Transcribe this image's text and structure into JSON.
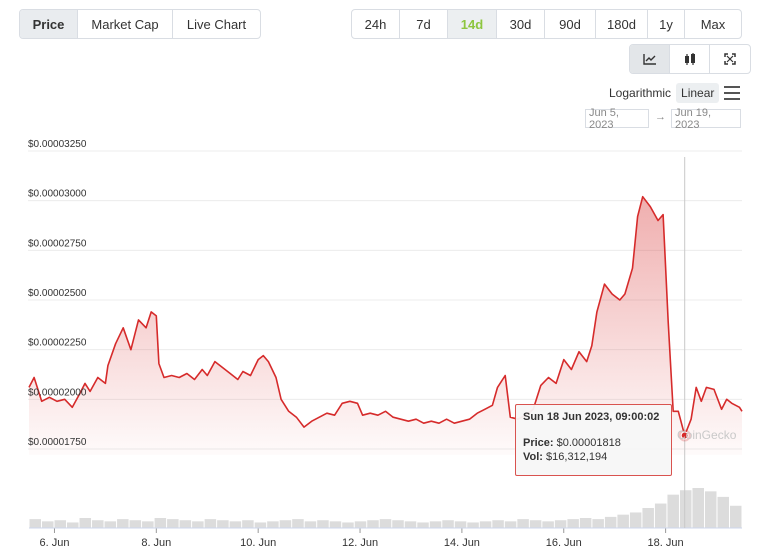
{
  "tabs": [
    {
      "label": "Price",
      "active": true
    },
    {
      "label": "Market Cap",
      "active": false
    },
    {
      "label": "Live Chart",
      "active": false
    }
  ],
  "ranges": [
    {
      "label": "24h",
      "active": false
    },
    {
      "label": "7d",
      "active": false
    },
    {
      "label": "14d",
      "active": true
    },
    {
      "label": "30d",
      "active": false
    },
    {
      "label": "90d",
      "active": false
    },
    {
      "label": "180d",
      "active": false
    },
    {
      "label": "1y",
      "active": false
    },
    {
      "label": "Max",
      "active": false
    }
  ],
  "views": [
    {
      "icon": "line-chart-icon",
      "active": true
    },
    {
      "icon": "candlestick-icon",
      "active": false
    },
    {
      "icon": "fullscreen-icon",
      "active": false
    }
  ],
  "scale": {
    "log_label": "Logarithmic",
    "linear_label": "Linear",
    "selected": "Linear"
  },
  "date_range": {
    "from": "Jun 5, 2023",
    "to": "Jun 19, 2023",
    "arrow": "→"
  },
  "tooltip": {
    "title": "Sun 18 Jun 2023, 09:00:02",
    "price_label": "Price:",
    "price_value": "$0.00001818",
    "vol_label": "Vol:",
    "vol_value": "$16,312,194"
  },
  "watermark": "CoinGecko",
  "colors": {
    "line": "#d62b2b",
    "active_range": "#8dc63f",
    "grid": "#ececec",
    "volume": "#dcdcdc"
  },
  "chart_data": {
    "type": "area",
    "title": "",
    "xlabel": "",
    "ylabel": "",
    "x_tick_labels": [
      "6. Jun",
      "8. Jun",
      "10. Jun",
      "12. Jun",
      "14. Jun",
      "16. Jun",
      "18. Jun"
    ],
    "y_tick_labels": [
      "$0.00001750",
      "$0.00002000",
      "$0.00002250",
      "$0.00002500",
      "$0.00002750",
      "$0.00003000",
      "$0.00003250"
    ],
    "y_ticks": [
      1.75e-05,
      2e-05,
      2.25e-05,
      2.5e-05,
      2.75e-05,
      3e-05,
      3.25e-05
    ],
    "ylim": [
      1.75e-05,
      3.25e-05
    ],
    "xlim_days": [
      5.5,
      19.5
    ],
    "grid": true,
    "series": [
      {
        "points": [
          [
            5.5,
            2.06e-05
          ],
          [
            5.6,
            2.11e-05
          ],
          [
            5.75,
            1.99e-05
          ],
          [
            5.9,
            2.01e-05
          ],
          [
            6.05,
            1.99e-05
          ],
          [
            6.2,
            2e-05
          ],
          [
            6.35,
            1.96e-05
          ],
          [
            6.5,
            2.03e-05
          ],
          [
            6.6,
            2.08e-05
          ],
          [
            6.7,
            2.04e-05
          ],
          [
            6.85,
            2.11e-05
          ],
          [
            7.0,
            2.08e-05
          ],
          [
            7.05,
            2.17e-05
          ],
          [
            7.2,
            2.28e-05
          ],
          [
            7.35,
            2.36e-05
          ],
          [
            7.5,
            2.25e-05
          ],
          [
            7.65,
            2.4e-05
          ],
          [
            7.8,
            2.36e-05
          ],
          [
            7.9,
            2.44e-05
          ],
          [
            8.0,
            2.42e-05
          ],
          [
            8.05,
            2.18e-05
          ],
          [
            8.15,
            2.11e-05
          ],
          [
            8.3,
            2.12e-05
          ],
          [
            8.45,
            2.11e-05
          ],
          [
            8.6,
            2.13e-05
          ],
          [
            8.75,
            2.1e-05
          ],
          [
            8.9,
            2.15e-05
          ],
          [
            9.0,
            2.12e-05
          ],
          [
            9.15,
            2.19e-05
          ],
          [
            9.3,
            2.16e-05
          ],
          [
            9.45,
            2.13e-05
          ],
          [
            9.6,
            2.1e-05
          ],
          [
            9.7,
            2.14e-05
          ],
          [
            9.85,
            2.12e-05
          ],
          [
            10.0,
            2.2e-05
          ],
          [
            10.1,
            2.22e-05
          ],
          [
            10.2,
            2.19e-05
          ],
          [
            10.35,
            2.11e-05
          ],
          [
            10.45,
            2e-05
          ],
          [
            10.6,
            1.94e-05
          ],
          [
            10.75,
            1.91e-05
          ],
          [
            10.9,
            1.86e-05
          ],
          [
            11.05,
            1.89e-05
          ],
          [
            11.2,
            1.91e-05
          ],
          [
            11.35,
            1.93e-05
          ],
          [
            11.5,
            1.92e-05
          ],
          [
            11.65,
            1.98e-05
          ],
          [
            11.8,
            1.99e-05
          ],
          [
            11.95,
            1.98e-05
          ],
          [
            12.05,
            1.92e-05
          ],
          [
            12.2,
            1.93e-05
          ],
          [
            12.35,
            1.92e-05
          ],
          [
            12.5,
            1.94e-05
          ],
          [
            12.65,
            1.91e-05
          ],
          [
            12.8,
            1.9e-05
          ],
          [
            12.95,
            1.89e-05
          ],
          [
            13.1,
            1.9e-05
          ],
          [
            13.25,
            1.88e-05
          ],
          [
            13.4,
            1.89e-05
          ],
          [
            13.55,
            1.88e-05
          ],
          [
            13.7,
            1.9e-05
          ],
          [
            13.85,
            1.88e-05
          ],
          [
            14.0,
            1.89e-05
          ],
          [
            14.15,
            1.9e-05
          ],
          [
            14.3,
            1.93e-05
          ],
          [
            14.45,
            1.95e-05
          ],
          [
            14.6,
            1.97e-05
          ],
          [
            14.7,
            2.06e-05
          ],
          [
            14.85,
            2.12e-05
          ],
          [
            14.95,
            1.91e-05
          ],
          [
            15.1,
            1.9e-05
          ],
          [
            15.25,
            1.92e-05
          ],
          [
            15.4,
            1.95e-05
          ],
          [
            15.55,
            2.07e-05
          ],
          [
            15.7,
            2.11e-05
          ],
          [
            15.85,
            2.08e-05
          ],
          [
            16.0,
            2.2e-05
          ],
          [
            16.15,
            2.15e-05
          ],
          [
            16.3,
            2.24e-05
          ],
          [
            16.45,
            2.19e-05
          ],
          [
            16.55,
            2.27e-05
          ],
          [
            16.65,
            2.44e-05
          ],
          [
            16.8,
            2.58e-05
          ],
          [
            16.95,
            2.53e-05
          ],
          [
            17.1,
            2.5e-05
          ],
          [
            17.2,
            2.53e-05
          ],
          [
            17.35,
            2.66e-05
          ],
          [
            17.45,
            2.92e-05
          ],
          [
            17.55,
            3.02e-05
          ],
          [
            17.7,
            2.97e-05
          ],
          [
            17.85,
            2.9e-05
          ],
          [
            17.95,
            2.93e-05
          ],
          [
            18.05,
            2.39e-05
          ],
          [
            18.15,
            1.94e-05
          ],
          [
            18.25,
            1.94e-05
          ],
          [
            18.375,
            1.818e-05
          ],
          [
            18.5,
            1.9e-05
          ],
          [
            18.6,
            2.06e-05
          ],
          [
            18.7,
            1.99e-05
          ],
          [
            18.8,
            2.06e-05
          ],
          [
            18.95,
            2.05e-05
          ],
          [
            19.1,
            1.95e-05
          ],
          [
            19.2,
            2e-05
          ],
          [
            19.3,
            1.98e-05
          ],
          [
            19.45,
            1.96e-05
          ],
          [
            19.5,
            1.94e-05
          ]
        ]
      }
    ],
    "volume": [
      8,
      6,
      7,
      5,
      9,
      7,
      6,
      8,
      7,
      6,
      9,
      8,
      7,
      6,
      8,
      7,
      6,
      7,
      5,
      6,
      7,
      8,
      6,
      7,
      6,
      5,
      6,
      7,
      8,
      7,
      6,
      5,
      6,
      7,
      6,
      5,
      6,
      7,
      6,
      8,
      7,
      6,
      7,
      8,
      9,
      8,
      10,
      12,
      14,
      18,
      22,
      30,
      34,
      36,
      33,
      28,
      20
    ],
    "crosshair_x_day": 18.375
  }
}
